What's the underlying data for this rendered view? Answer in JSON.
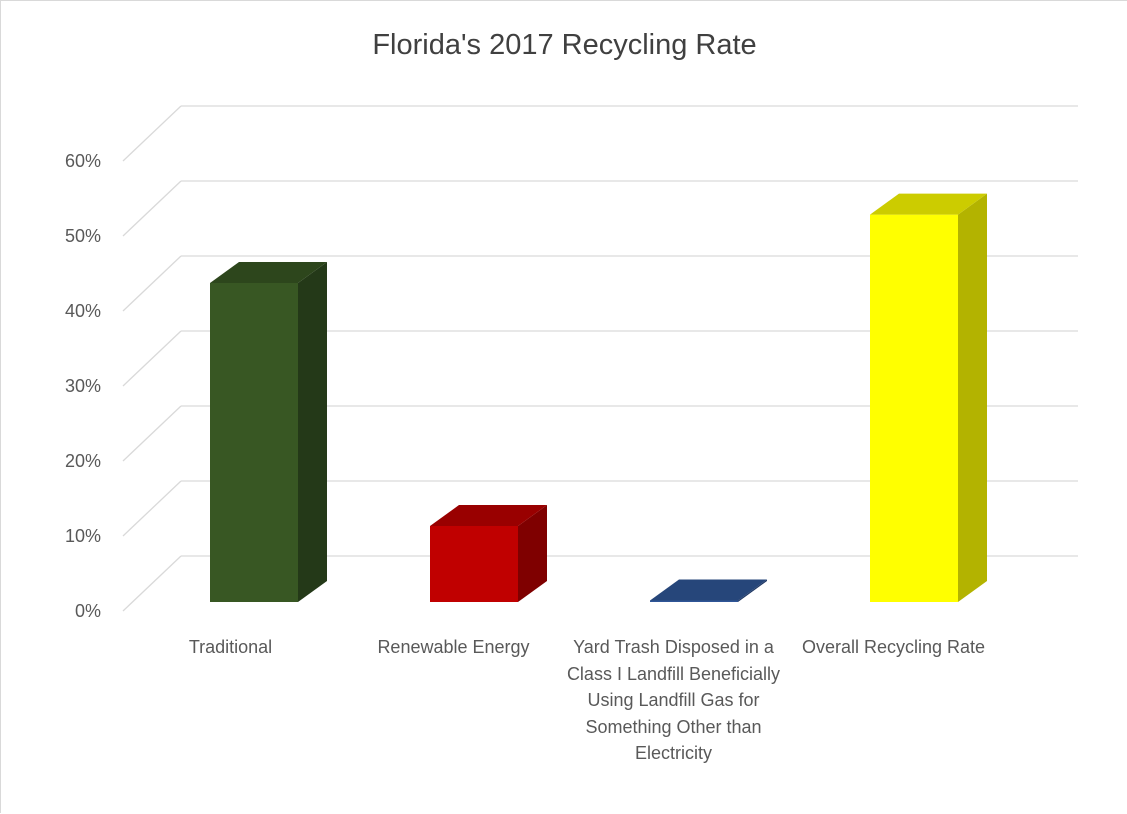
{
  "chart_data": {
    "type": "bar",
    "title": "Florida's 2017 Recycling Rate",
    "xlabel": "",
    "ylabel": "",
    "categories": [
      "Traditional",
      "Renewable Energy",
      "Yard Trash Disposed in a Class I Landfill Beneficially Using Landfill Gas for Something Other than Electricity",
      "Overall Recycling Rate"
    ],
    "values": [
      42,
      10,
      0.2,
      51
    ],
    "ylim": [
      0,
      60
    ],
    "yticks": [
      "0%",
      "10%",
      "20%",
      "30%",
      "40%",
      "50%",
      "60%"
    ],
    "grid": true,
    "legend": "none",
    "colors": [
      "#385723",
      "#c00000",
      "#2f5597",
      "#ffff00"
    ],
    "side_colors": [
      "#243918",
      "#7f0000",
      "#203864",
      "#b3b300"
    ],
    "top_colors": [
      "#2d461c",
      "#990000",
      "#26467a",
      "#cccc00"
    ]
  }
}
